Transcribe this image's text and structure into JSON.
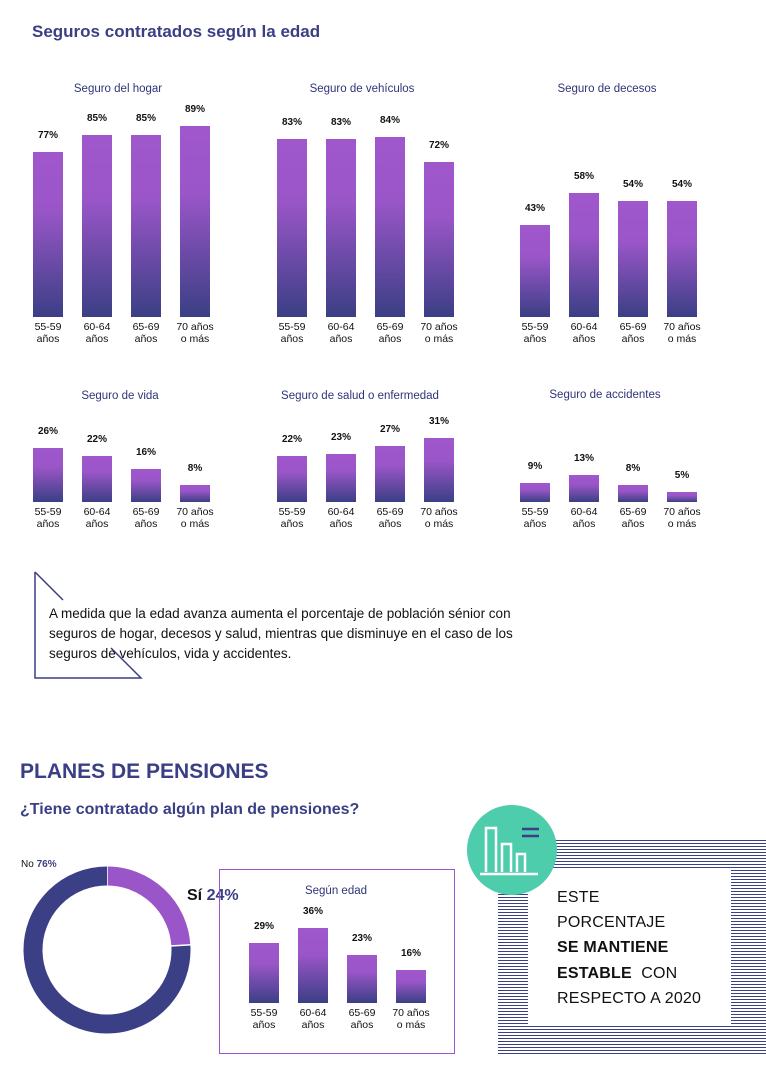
{
  "page": {
    "section1_title": "Seguros contratados según la edad",
    "note_lines": [
      "A medida que la edad avanza aumenta el porcentaje de población sénior con",
      "seguros de hogar, decesos y salud, mientras que disminuye en el caso de los",
      "seguros de vehículos, vida y accidentes."
    ],
    "section2_title": "PLANES DE PENSIONES",
    "section2_question": "¿Tiene contratado algún plan de pensiones?",
    "stable_box": {
      "line1": "ESTE",
      "line2": "PORCENTAJE",
      "line3": "SE MANTIENE",
      "line4_bold": "ESTABLE",
      "line4_rest": "CON",
      "line5": "RESPECTO A 2020",
      "icon": "bar-chart-icon"
    }
  },
  "colors": {
    "title": "#3a3f85",
    "bar_top": "#a057cc",
    "bar_bottom": "#3b3f85",
    "donut_no": "#3b3f85",
    "donut_si": "#9a56c8",
    "icon_circle": "#4ecdac"
  },
  "chart_data": [
    {
      "type": "bar",
      "title": "Seguro del hogar",
      "categories": [
        [
          "55-59",
          "años"
        ],
        [
          "60-64",
          "años"
        ],
        [
          "65-69",
          "años"
        ],
        [
          "70 años",
          "o más"
        ]
      ],
      "values": [
        77,
        85,
        85,
        89
      ],
      "labels": [
        "77%",
        "85%",
        "85%",
        "89%"
      ],
      "unit": "%",
      "ylim": [
        0,
        100
      ]
    },
    {
      "type": "bar",
      "title": "Seguro de vehículos",
      "categories": [
        [
          "55-59",
          "años"
        ],
        [
          "60-64",
          "años"
        ],
        [
          "65-69",
          "años"
        ],
        [
          "70 años",
          "o más"
        ]
      ],
      "values": [
        83,
        83,
        84,
        72
      ],
      "labels": [
        "83%",
        "83%",
        "84%",
        "72%"
      ],
      "unit": "%",
      "ylim": [
        0,
        100
      ]
    },
    {
      "type": "bar",
      "title": "Seguro de decesos",
      "categories": [
        [
          "55-59",
          "años"
        ],
        [
          "60-64",
          "años"
        ],
        [
          "65-69",
          "años"
        ],
        [
          "70 años",
          "o más"
        ]
      ],
      "values": [
        43,
        58,
        54,
        54
      ],
      "labels": [
        "43%",
        "58%",
        "54%",
        "54%"
      ],
      "unit": "%",
      "ylim": [
        0,
        100
      ]
    },
    {
      "type": "bar",
      "title": "Seguro de vida",
      "categories": [
        [
          "55-59",
          "años"
        ],
        [
          "60-64",
          "años"
        ],
        [
          "65-69",
          "años"
        ],
        [
          "70 años",
          "o más"
        ]
      ],
      "values": [
        26,
        22,
        16,
        8
      ],
      "labels": [
        "26%",
        "22%",
        "16%",
        "8%"
      ],
      "unit": "%",
      "ylim": [
        0,
        100
      ]
    },
    {
      "type": "bar",
      "title": "Seguro de salud o enfermedad",
      "categories": [
        [
          "55-59",
          "años"
        ],
        [
          "60-64",
          "años"
        ],
        [
          "65-69",
          "años"
        ],
        [
          "70 años",
          "o más"
        ]
      ],
      "values": [
        22,
        23,
        27,
        31
      ],
      "labels": [
        "22%",
        "23%",
        "27%",
        "31%"
      ],
      "unit": "%",
      "ylim": [
        0,
        100
      ]
    },
    {
      "type": "bar",
      "title": "Seguro de accidentes",
      "categories": [
        [
          "55-59",
          "años"
        ],
        [
          "60-64",
          "años"
        ],
        [
          "65-69",
          "años"
        ],
        [
          "70 años",
          "o más"
        ]
      ],
      "values": [
        9,
        13,
        8,
        5
      ],
      "labels": [
        "9%",
        "13%",
        "8%",
        "5%"
      ],
      "unit": "%",
      "ylim": [
        0,
        100
      ]
    },
    {
      "type": "pie",
      "title": "¿Tiene contratado algún plan de pensiones?",
      "categories": [
        "Sí",
        "No"
      ],
      "values": [
        24,
        76
      ],
      "labels": [
        "24%",
        "76%"
      ],
      "unit": "%"
    },
    {
      "type": "bar",
      "title": "Según edad",
      "categories": [
        [
          "55-59",
          "años"
        ],
        [
          "60-64",
          "años"
        ],
        [
          "65-69",
          "años"
        ],
        [
          "70 años",
          "o más"
        ]
      ],
      "values": [
        29,
        36,
        23,
        16
      ],
      "labels": [
        "29%",
        "36%",
        "23%",
        "16%"
      ],
      "unit": "%",
      "ylim": [
        0,
        100
      ]
    }
  ]
}
